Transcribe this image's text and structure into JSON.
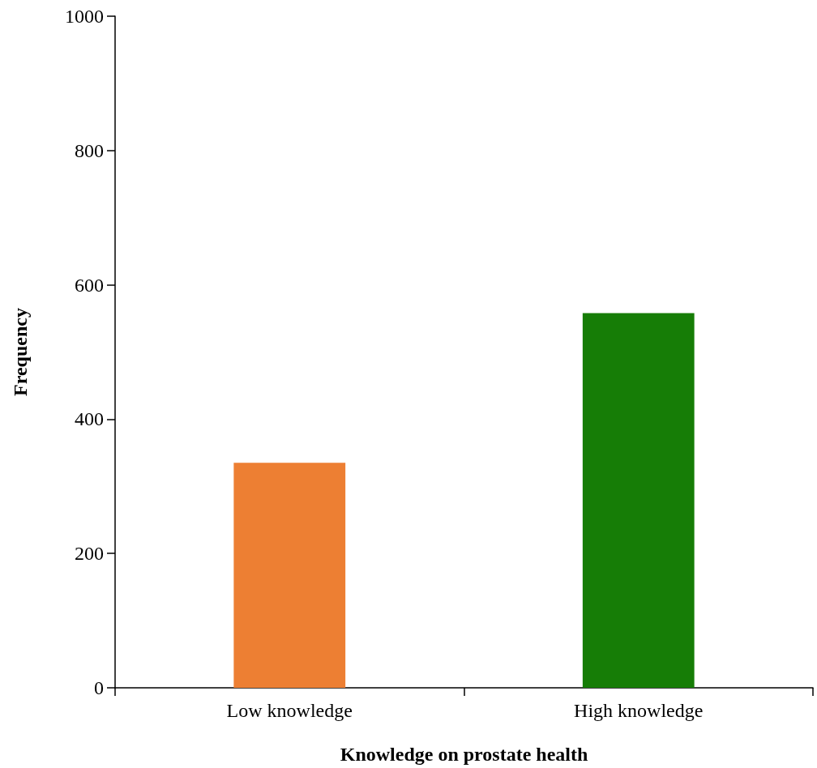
{
  "chart_data": {
    "type": "bar",
    "xlabel": "Knowledge on prostate health",
    "ylabel": "Frequency",
    "categories": [
      "Low knowledge",
      "High knowledge"
    ],
    "values": [
      335,
      558
    ],
    "colors": [
      "#ed7f33",
      "#167d06"
    ],
    "ylim": [
      0,
      1000
    ],
    "yticks": [
      0,
      200,
      400,
      600,
      800,
      1000
    ],
    "grid": false
  }
}
